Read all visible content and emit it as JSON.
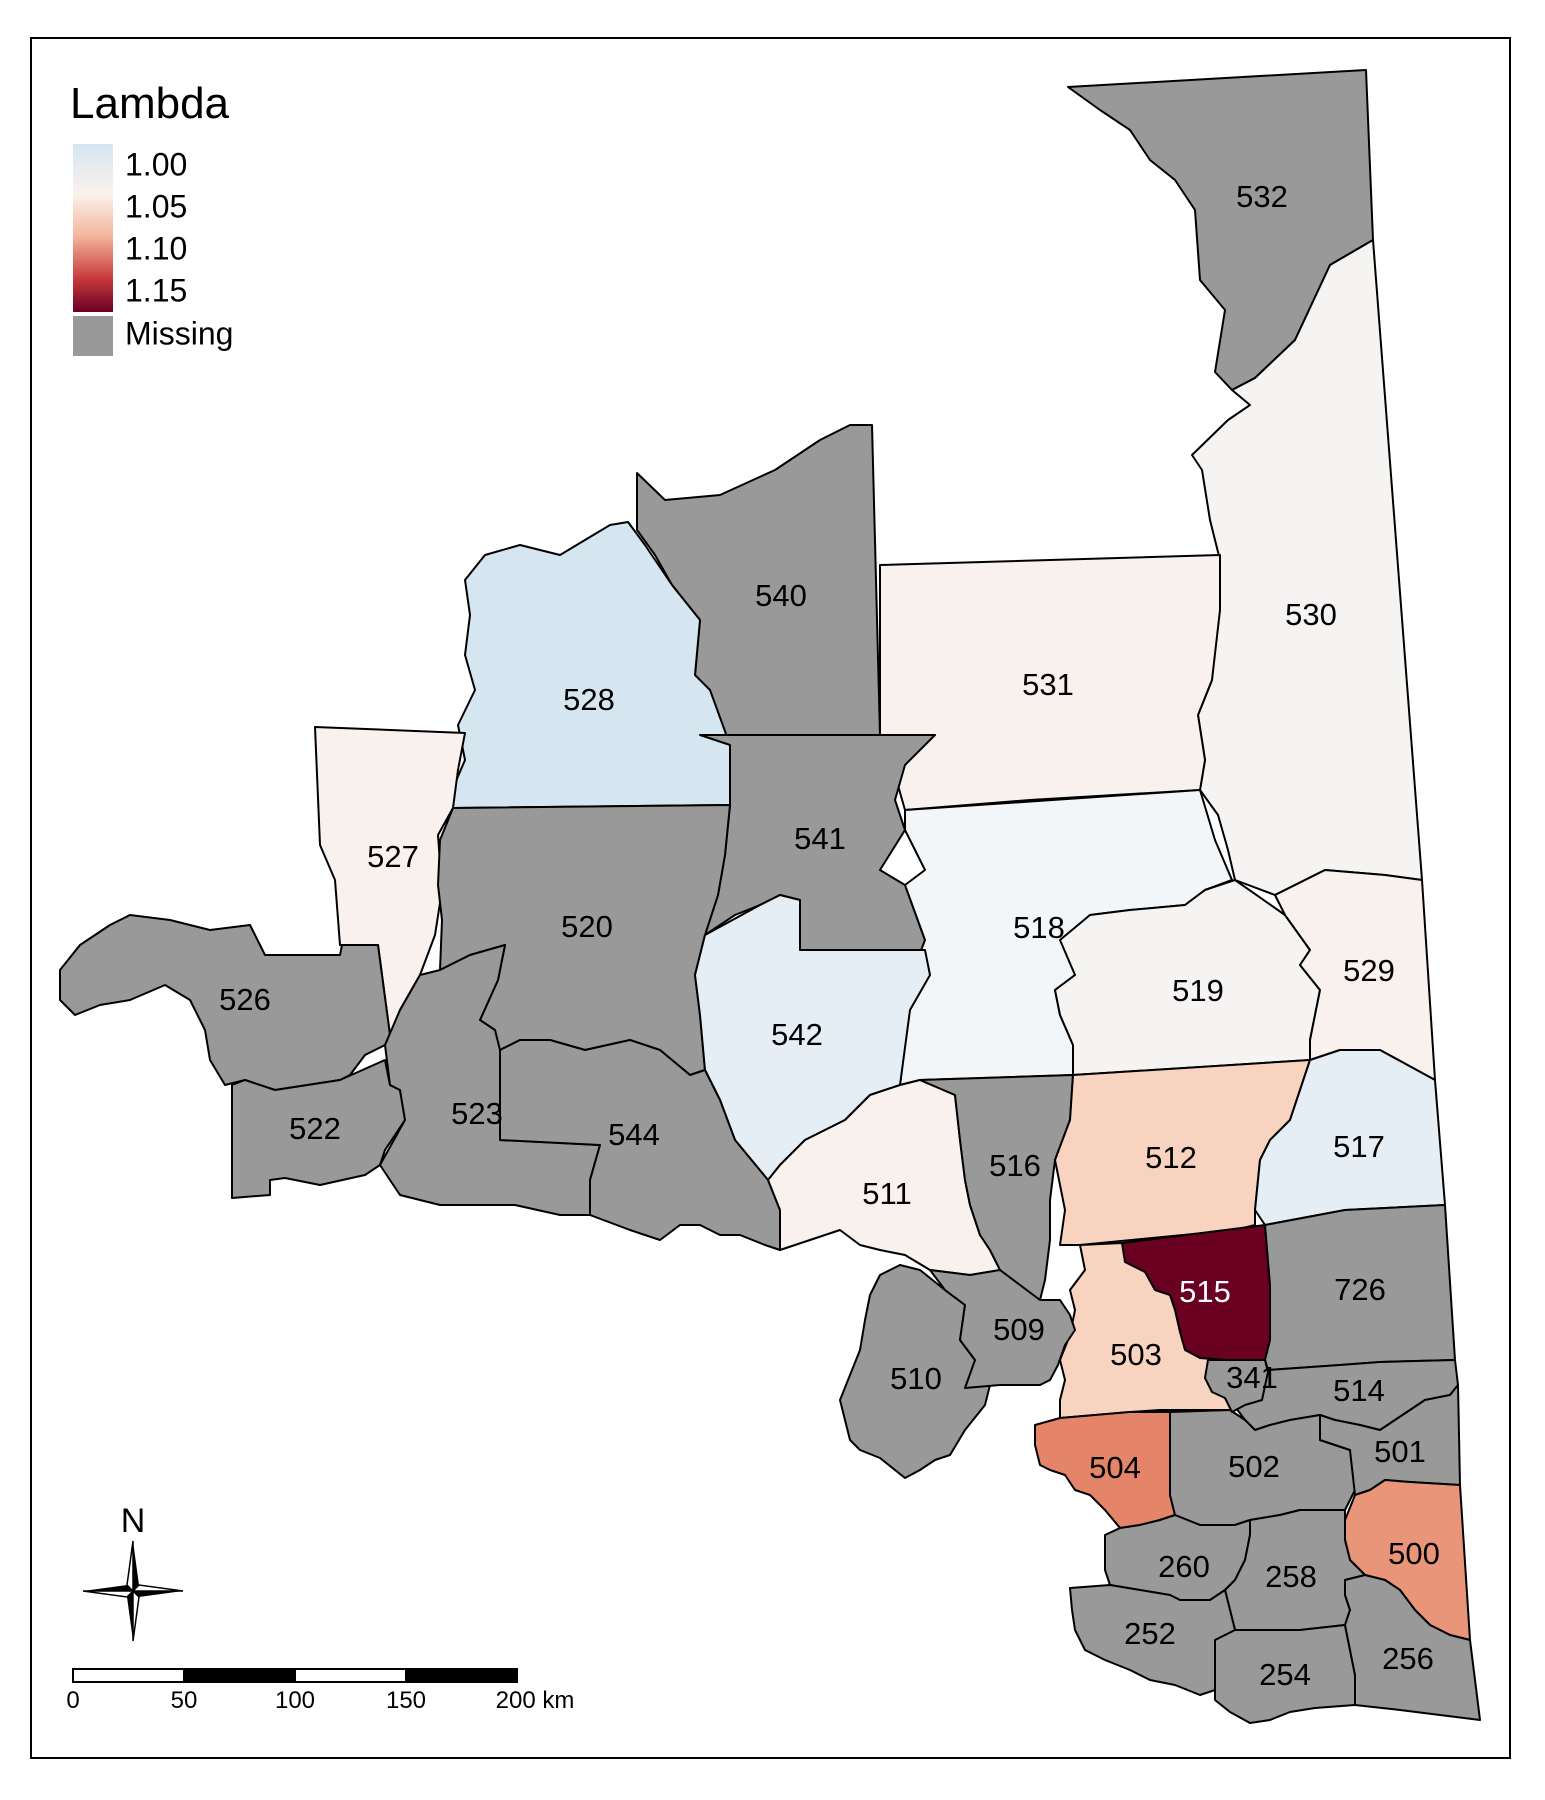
{
  "legend": {
    "title": "Lambda",
    "labels": [
      "1.00",
      "1.05",
      "1.10",
      "1.15"
    ],
    "missing_label": "Missing",
    "colors": {
      "low": "#e3eef7",
      "mid": "#fbeee7",
      "high": "#6a0022",
      "missing": "#999999"
    }
  },
  "north_arrow": {
    "label": "N"
  },
  "scale_bar": {
    "ticks": [
      "0",
      "50",
      "100",
      "150",
      "200 km"
    ]
  },
  "regions": [
    {
      "id": "532",
      "lambda": null
    },
    {
      "id": "530",
      "lambda": 1.01
    },
    {
      "id": "540",
      "lambda": null
    },
    {
      "id": "531",
      "lambda": 1.02
    },
    {
      "id": "528",
      "lambda": 0.98
    },
    {
      "id": "541",
      "lambda": null
    },
    {
      "id": "527",
      "lambda": 1.02
    },
    {
      "id": "520",
      "lambda": null
    },
    {
      "id": "518",
      "lambda": 1.0
    },
    {
      "id": "542",
      "lambda": 0.99
    },
    {
      "id": "519",
      "lambda": 1.01
    },
    {
      "id": "529",
      "lambda": 1.02
    },
    {
      "id": "526",
      "lambda": null
    },
    {
      "id": "522",
      "lambda": null
    },
    {
      "id": "523",
      "lambda": null
    },
    {
      "id": "544",
      "lambda": null
    },
    {
      "id": "511",
      "lambda": 1.02
    },
    {
      "id": "516",
      "lambda": null
    },
    {
      "id": "512",
      "lambda": 1.05
    },
    {
      "id": "517",
      "lambda": 0.99
    },
    {
      "id": "515",
      "lambda": 1.15
    },
    {
      "id": "726",
      "lambda": null
    },
    {
      "id": "503",
      "lambda": 1.05
    },
    {
      "id": "510",
      "lambda": null
    },
    {
      "id": "509",
      "lambda": null
    },
    {
      "id": "514",
      "lambda": null
    },
    {
      "id": "504",
      "lambda": 1.1
    },
    {
      "id": "502",
      "lambda": null
    },
    {
      "id": "501",
      "lambda": null
    },
    {
      "id": "500",
      "lambda": 1.09
    },
    {
      "id": "260",
      "lambda": null
    },
    {
      "id": "258",
      "lambda": null
    },
    {
      "id": "252",
      "lambda": null
    },
    {
      "id": "254",
      "lambda": null
    },
    {
      "id": "256",
      "lambda": null
    },
    {
      "id": "541",
      "lambda": null,
      "label": "341"
    }
  ]
}
